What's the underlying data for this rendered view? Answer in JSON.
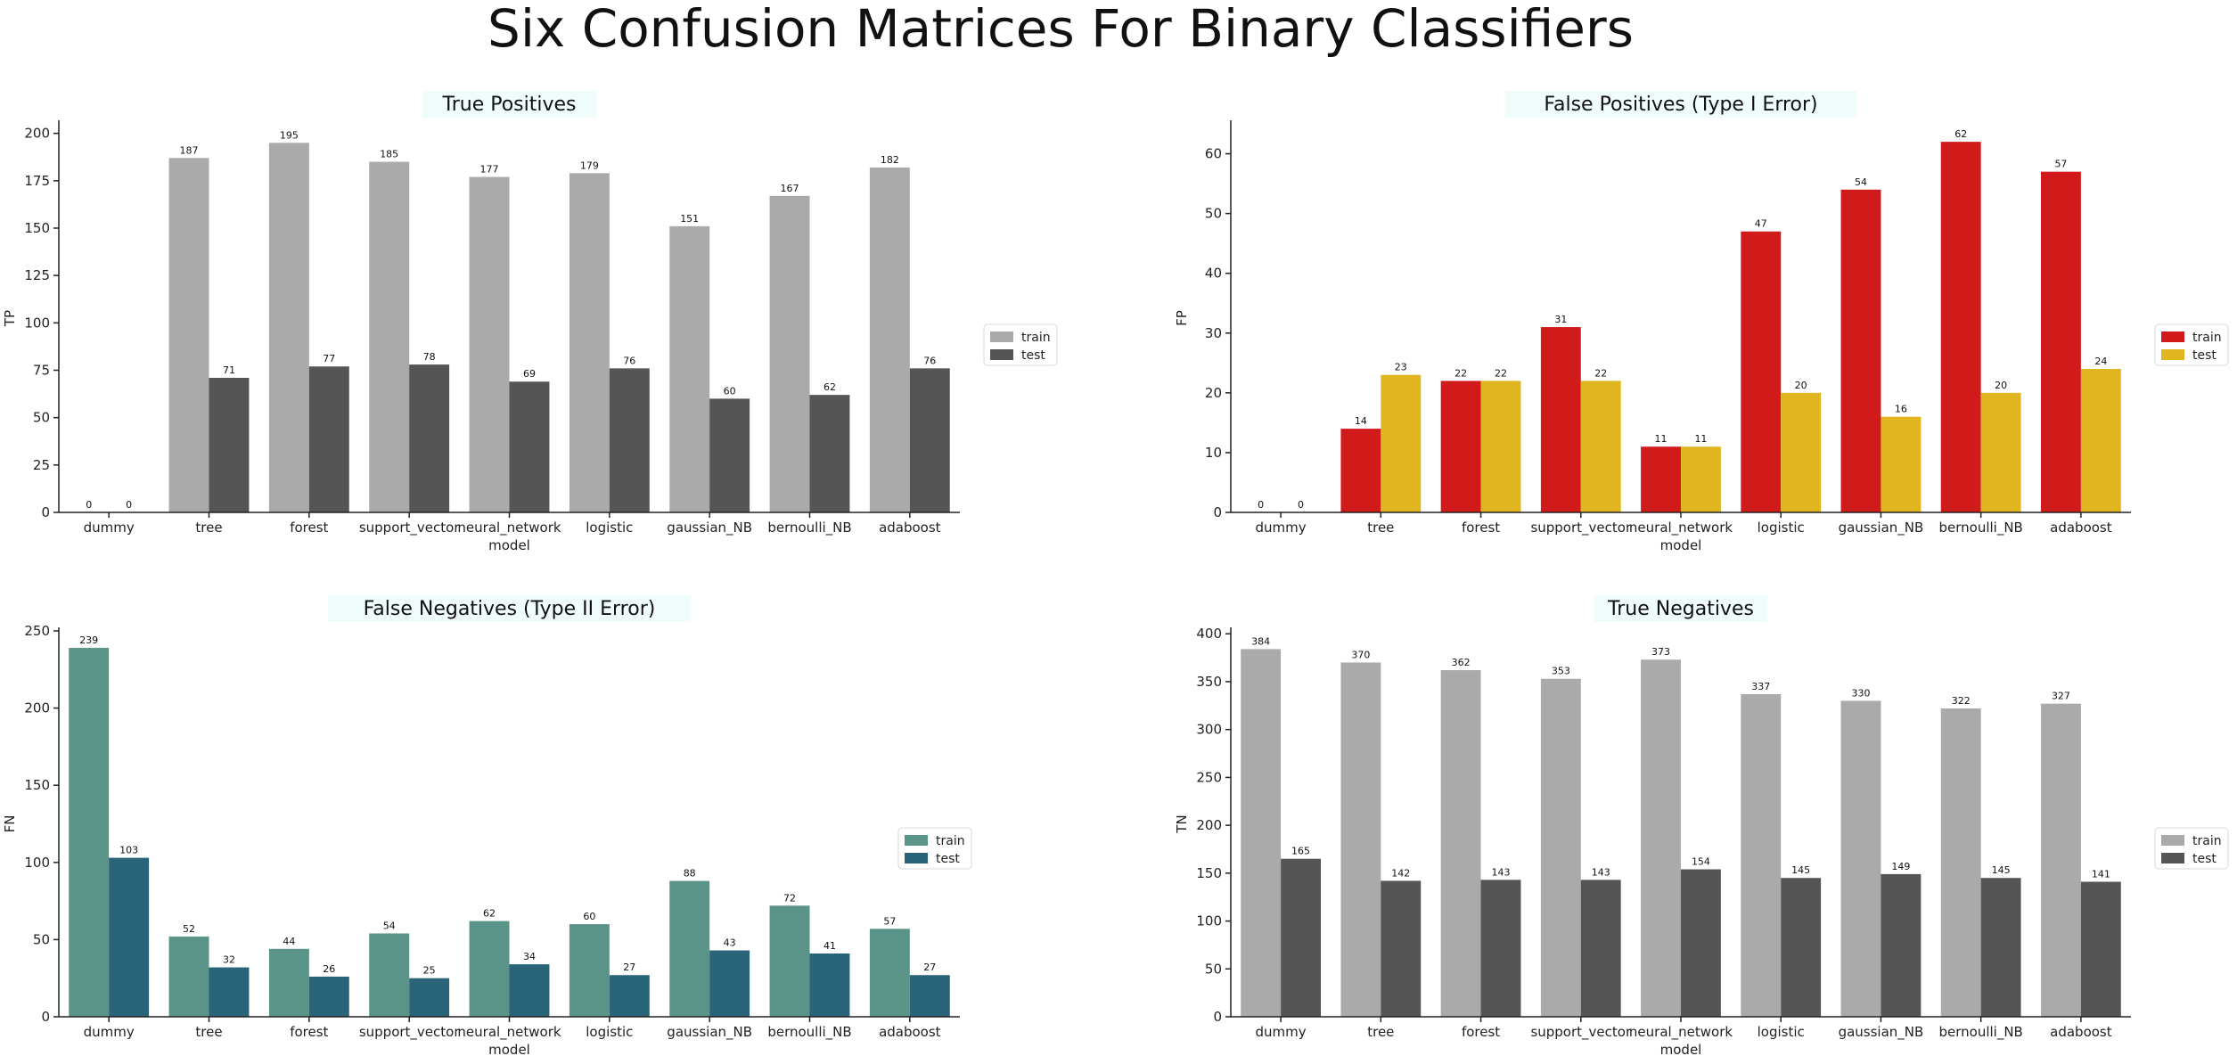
{
  "figure": {
    "suptitle": "Six Confusion Matrices For Binary Classifiers"
  },
  "chart_data": [
    {
      "type": "bar",
      "title": "True Positives",
      "xlabel": "model",
      "ylabel": "TP",
      "ylim": [
        0,
        205
      ],
      "yticks": [
        0,
        25,
        50,
        75,
        100,
        125,
        150,
        175,
        200
      ],
      "grid": false,
      "legend_position": "right",
      "categories": [
        "dummy",
        "tree",
        "forest",
        "support_vector",
        "neural_network",
        "logistic",
        "gaussian_NB",
        "bernoulli_NB",
        "adaboost"
      ],
      "series": [
        {
          "name": "train",
          "color": "#aaaaaa",
          "values": [
            0,
            187,
            195,
            185,
            177,
            179,
            151,
            167,
            182
          ]
        },
        {
          "name": "test",
          "color": "#555555",
          "values": [
            0,
            71,
            77,
            78,
            69,
            76,
            60,
            62,
            76
          ]
        }
      ]
    },
    {
      "type": "bar",
      "title": "False Positives (Type I Error)",
      "xlabel": "model",
      "ylabel": "FP",
      "ylim": [
        0,
        65
      ],
      "yticks": [
        0,
        10,
        20,
        30,
        40,
        50,
        60
      ],
      "grid": false,
      "legend_position": "right",
      "categories": [
        "dummy",
        "tree",
        "forest",
        "support_vector",
        "neural_network",
        "logistic",
        "gaussian_NB",
        "bernoulli_NB",
        "adaboost"
      ],
      "series": [
        {
          "name": "train",
          "color": "#d11b1b",
          "values": [
            0,
            14,
            22,
            31,
            11,
            47,
            54,
            62,
            57
          ]
        },
        {
          "name": "test",
          "color": "#e0b520",
          "values": [
            0,
            23,
            22,
            22,
            11,
            20,
            16,
            20,
            24
          ]
        }
      ]
    },
    {
      "type": "bar",
      "title": "False Negatives (Type II Error)",
      "xlabel": "model",
      "ylabel": "FN",
      "ylim": [
        0,
        250
      ],
      "yticks": [
        0,
        50,
        100,
        150,
        200,
        250
      ],
      "grid": false,
      "legend_position": "right",
      "categories": [
        "dummy",
        "tree",
        "forest",
        "support_vector",
        "neural_network",
        "logistic",
        "gaussian_NB",
        "bernoulli_NB",
        "adaboost"
      ],
      "series": [
        {
          "name": "train",
          "color": "#5a9489",
          "values": [
            239,
            52,
            44,
            54,
            62,
            60,
            88,
            72,
            57
          ]
        },
        {
          "name": "test",
          "color": "#2a6478",
          "values": [
            103,
            32,
            26,
            25,
            34,
            27,
            43,
            41,
            27
          ]
        }
      ]
    },
    {
      "type": "bar",
      "title": "True Negatives",
      "xlabel": "model",
      "ylabel": "TN",
      "ylim": [
        0,
        403
      ],
      "yticks": [
        0,
        50,
        100,
        150,
        200,
        250,
        300,
        350,
        400
      ],
      "grid": false,
      "legend_position": "right",
      "categories": [
        "dummy",
        "tree",
        "forest",
        "support_vector",
        "neural_network",
        "logistic",
        "gaussian_NB",
        "bernoulli_NB",
        "adaboost"
      ],
      "series": [
        {
          "name": "train",
          "color": "#aaaaaa",
          "values": [
            384,
            370,
            362,
            353,
            373,
            337,
            330,
            322,
            327
          ]
        },
        {
          "name": "test",
          "color": "#555555",
          "values": [
            165,
            142,
            143,
            143,
            154,
            145,
            149,
            145,
            141
          ]
        }
      ]
    }
  ]
}
